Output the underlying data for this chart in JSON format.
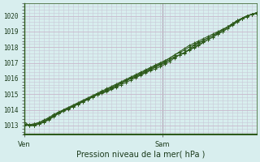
{
  "title": "Pression niveau de la mer( hPa )",
  "bg_color": "#d8eeee",
  "plot_bg_color": "#d8eeee",
  "grid_color_major": "#c0b8c8",
  "grid_color_minor": "#c0b8c8",
  "line_color": "#2d5a1b",
  "marker_color": "#2d5a1b",
  "vline_color": "#888888",
  "ylim": [
    1012.4,
    1020.8
  ],
  "yticks": [
    1013,
    1014,
    1015,
    1016,
    1017,
    1018,
    1019,
    1020
  ],
  "xlim": [
    0,
    48
  ],
  "vline_x": 28.5,
  "xtick_labels": [
    "Ven",
    "Sam"
  ],
  "xtick_positions": [
    0,
    28.5
  ],
  "series": [
    {
      "x": [
        0,
        1,
        2,
        3,
        4,
        5,
        6,
        7,
        8,
        9,
        10,
        11,
        12,
        13,
        14,
        15,
        16,
        17,
        18,
        19,
        20,
        21,
        22,
        23,
        24,
        25,
        26,
        27,
        28,
        29,
        30,
        31,
        32,
        33,
        34,
        35,
        36,
        37,
        38,
        39,
        40,
        41,
        42,
        43,
        44,
        45,
        46,
        47,
        48
      ],
      "y": [
        1013.0,
        1013.05,
        1013.1,
        1013.2,
        1013.35,
        1013.5,
        1013.7,
        1013.85,
        1014.0,
        1014.15,
        1014.3,
        1014.45,
        1014.6,
        1014.75,
        1014.9,
        1015.05,
        1015.2,
        1015.35,
        1015.5,
        1015.65,
        1015.8,
        1015.95,
        1016.1,
        1016.25,
        1016.4,
        1016.55,
        1016.7,
        1016.85,
        1017.0,
        1017.15,
        1017.3,
        1017.5,
        1017.7,
        1017.9,
        1018.1,
        1018.25,
        1018.4,
        1018.55,
        1018.7,
        1018.85,
        1019.0,
        1019.15,
        1019.3,
        1019.5,
        1019.7,
        1019.85,
        1020.0,
        1020.1,
        1020.2
      ]
    },
    {
      "x": [
        0,
        1,
        2,
        3,
        4,
        5,
        6,
        7,
        8,
        9,
        10,
        11,
        12,
        13,
        14,
        15,
        16,
        17,
        18,
        19,
        20,
        21,
        22,
        23,
        24,
        25,
        26,
        27,
        28,
        29,
        30,
        31,
        32,
        33,
        34,
        35,
        36,
        37,
        38,
        39,
        40,
        41,
        42,
        43,
        44,
        45,
        46,
        47,
        48
      ],
      "y": [
        1013.2,
        1013.0,
        1013.0,
        1013.1,
        1013.25,
        1013.4,
        1013.6,
        1013.8,
        1013.95,
        1014.1,
        1014.25,
        1014.4,
        1014.55,
        1014.7,
        1014.85,
        1015.0,
        1015.1,
        1015.2,
        1015.35,
        1015.5,
        1015.7,
        1015.85,
        1016.0,
        1016.1,
        1016.25,
        1016.4,
        1016.55,
        1016.7,
        1016.85,
        1017.0,
        1017.2,
        1017.4,
        1017.5,
        1017.6,
        1017.85,
        1018.1,
        1018.25,
        1018.45,
        1018.6,
        1018.75,
        1018.95,
        1019.1,
        1019.3,
        1019.5,
        1019.7,
        1019.85,
        1020.0,
        1020.1,
        1020.15
      ]
    },
    {
      "x": [
        0,
        1,
        2,
        3,
        4,
        5,
        6,
        7,
        8,
        9,
        10,
        11,
        12,
        13,
        14,
        15,
        16,
        17,
        18,
        19,
        20,
        21,
        22,
        23,
        24,
        25,
        26,
        27,
        28,
        29,
        30,
        31,
        32,
        33,
        34,
        35,
        36,
        37,
        38,
        39,
        40,
        41,
        42,
        43,
        44,
        45,
        46,
        47,
        48
      ],
      "y": [
        1013.05,
        1013.0,
        1013.0,
        1013.1,
        1013.2,
        1013.35,
        1013.55,
        1013.75,
        1013.95,
        1014.1,
        1014.2,
        1014.35,
        1014.5,
        1014.65,
        1014.8,
        1014.95,
        1015.05,
        1015.15,
        1015.3,
        1015.45,
        1015.6,
        1015.75,
        1015.9,
        1016.05,
        1016.2,
        1016.35,
        1016.5,
        1016.6,
        1016.75,
        1016.9,
        1017.1,
        1017.3,
        1017.5,
        1017.65,
        1017.85,
        1018.0,
        1018.15,
        1018.35,
        1018.5,
        1018.65,
        1018.85,
        1019.0,
        1019.2,
        1019.4,
        1019.6,
        1019.8,
        1019.95,
        1020.1,
        1020.2
      ]
    },
    {
      "x": [
        0,
        1,
        2,
        3,
        4,
        5,
        6,
        7,
        8,
        9,
        10,
        11,
        12,
        13,
        14,
        15,
        16,
        17,
        18,
        19,
        20,
        21,
        22,
        23,
        24,
        25,
        26,
        27,
        28,
        29,
        30,
        31,
        32,
        33,
        34,
        35,
        36,
        37,
        38,
        39,
        40,
        41,
        42,
        43,
        44,
        45,
        46,
        47,
        48
      ],
      "y": [
        1013.1,
        1013.0,
        1013.0,
        1013.1,
        1013.2,
        1013.4,
        1013.6,
        1013.75,
        1013.9,
        1014.05,
        1014.2,
        1014.35,
        1014.5,
        1014.65,
        1014.8,
        1014.95,
        1015.1,
        1015.25,
        1015.4,
        1015.55,
        1015.7,
        1015.85,
        1016.0,
        1016.15,
        1016.3,
        1016.45,
        1016.6,
        1016.75,
        1016.9,
        1017.05,
        1017.2,
        1017.35,
        1017.5,
        1017.65,
        1017.8,
        1017.95,
        1018.1,
        1018.3,
        1018.5,
        1018.65,
        1018.85,
        1019.0,
        1019.2,
        1019.45,
        1019.65,
        1019.85,
        1020.0,
        1020.1,
        1020.2
      ]
    },
    {
      "x": [
        0,
        1,
        2,
        3,
        4,
        5,
        6,
        7,
        8,
        9,
        10,
        11,
        12,
        13,
        14,
        15,
        16,
        17,
        18,
        19,
        20,
        21,
        22,
        23,
        24,
        25,
        26,
        27,
        28,
        29,
        30,
        31,
        32,
        33,
        34,
        35,
        36,
        37,
        38,
        39,
        40,
        41,
        42,
        43,
        44,
        45,
        46,
        47,
        48
      ],
      "y": [
        1013.0,
        1013.05,
        1013.1,
        1013.15,
        1013.3,
        1013.45,
        1013.65,
        1013.8,
        1013.95,
        1014.1,
        1014.25,
        1014.4,
        1014.55,
        1014.7,
        1014.85,
        1015.0,
        1015.15,
        1015.3,
        1015.45,
        1015.6,
        1015.75,
        1015.9,
        1016.05,
        1016.2,
        1016.35,
        1016.5,
        1016.65,
        1016.8,
        1016.95,
        1017.1,
        1017.3,
        1017.5,
        1017.65,
        1017.8,
        1018.0,
        1018.15,
        1018.3,
        1018.45,
        1018.6,
        1018.75,
        1018.9,
        1019.1,
        1019.3,
        1019.5,
        1019.7,
        1019.85,
        1020.0,
        1020.1,
        1020.2
      ]
    }
  ]
}
